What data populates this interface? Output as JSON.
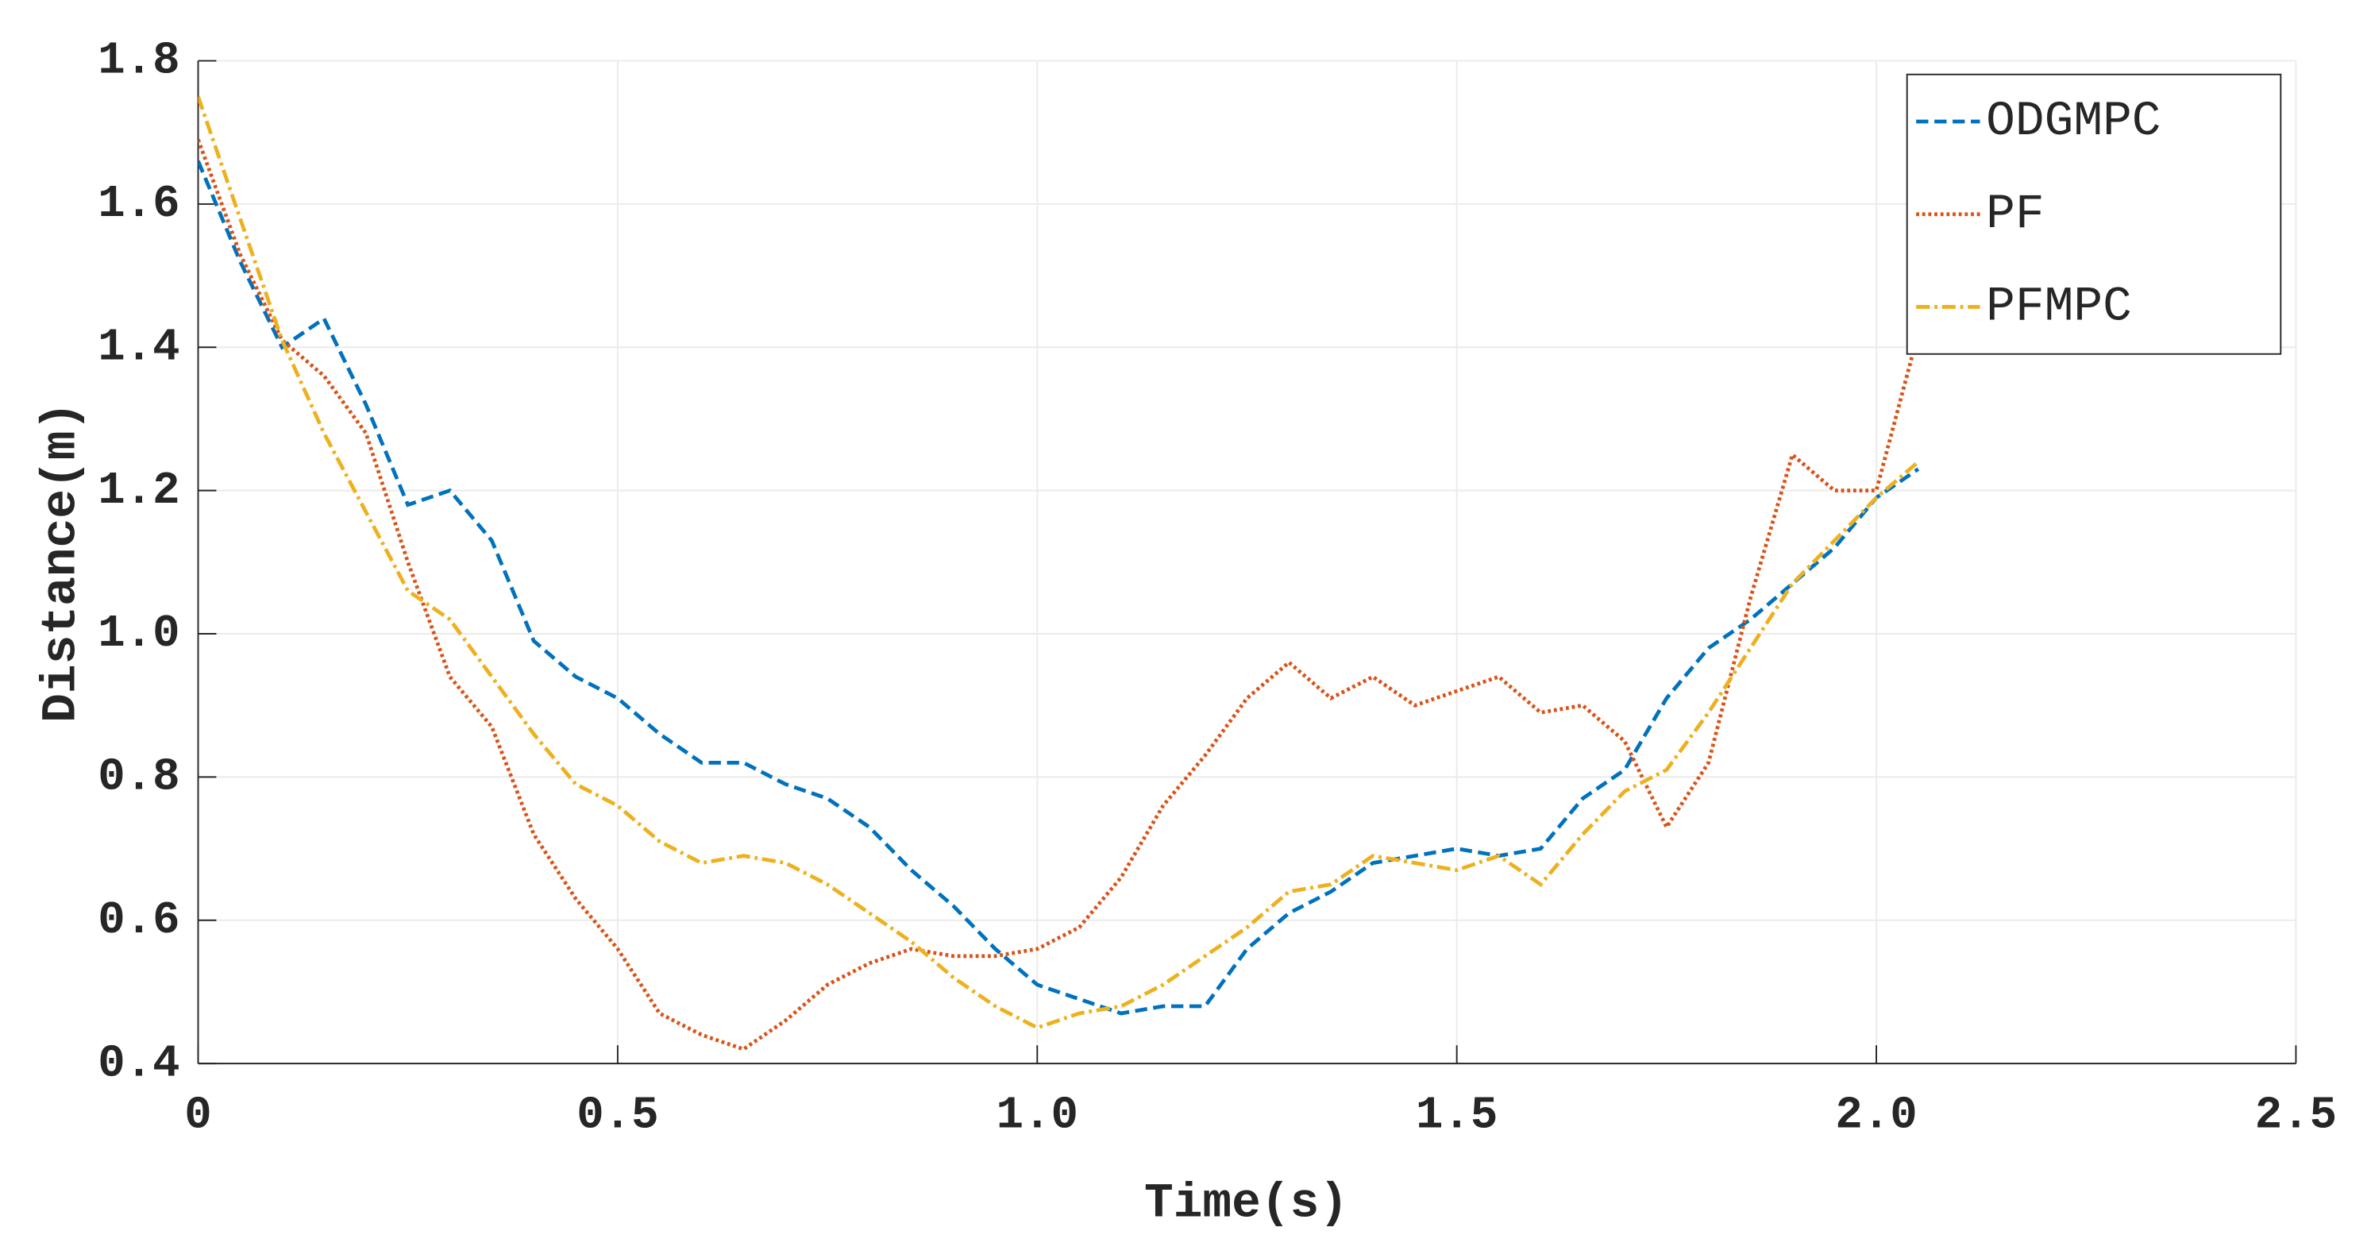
{
  "chart_data": {
    "type": "line",
    "x_label": "Time(s)",
    "y_label": "Distance(m)",
    "x": [
      0,
      0.05,
      0.1,
      0.15,
      0.2,
      0.25,
      0.3,
      0.35,
      0.4,
      0.45,
      0.5,
      0.55,
      0.6,
      0.65,
      0.7,
      0.75,
      0.8,
      0.85,
      0.9,
      0.95,
      1.0,
      1.05,
      1.1,
      1.15,
      1.2,
      1.25,
      1.3,
      1.35,
      1.4,
      1.45,
      1.5,
      1.55,
      1.6,
      1.65,
      1.7,
      1.75,
      1.8,
      1.85,
      1.9,
      1.95,
      2.0,
      2.05
    ],
    "series": [
      {
        "name": "ODGMPC",
        "color": "#0072bd",
        "dash": "dashed",
        "values": [
          1.66,
          1.52,
          1.4,
          1.44,
          1.32,
          1.18,
          1.2,
          1.13,
          0.99,
          0.94,
          0.91,
          0.86,
          0.82,
          0.82,
          0.79,
          0.77,
          0.73,
          0.67,
          0.62,
          0.56,
          0.51,
          0.49,
          0.47,
          0.48,
          0.48,
          0.56,
          0.61,
          0.64,
          0.68,
          0.69,
          0.7,
          0.69,
          0.7,
          0.77,
          0.81,
          0.91,
          0.98,
          1.02,
          1.07,
          1.12,
          1.19,
          1.23
        ]
      },
      {
        "name": "PF",
        "color": "#d95319",
        "dash": "dotted",
        "values": [
          1.69,
          1.53,
          1.41,
          1.36,
          1.28,
          1.1,
          0.94,
          0.87,
          0.72,
          0.63,
          0.56,
          0.47,
          0.44,
          0.42,
          0.46,
          0.51,
          0.54,
          0.56,
          0.55,
          0.55,
          0.56,
          0.59,
          0.66,
          0.76,
          0.83,
          0.91,
          0.96,
          0.91,
          0.94,
          0.9,
          0.92,
          0.94,
          0.89,
          0.9,
          0.85,
          0.73,
          0.82,
          1.05,
          1.25,
          1.2,
          1.2,
          1.42
        ]
      },
      {
        "name": "PFMPC",
        "color": "#edb120",
        "dash": "dashdot",
        "values": [
          1.75,
          1.58,
          1.41,
          1.28,
          1.17,
          1.06,
          1.02,
          0.94,
          0.86,
          0.79,
          0.76,
          0.71,
          0.68,
          0.69,
          0.68,
          0.65,
          0.61,
          0.57,
          0.52,
          0.48,
          0.45,
          0.47,
          0.48,
          0.51,
          0.55,
          0.59,
          0.64,
          0.65,
          0.69,
          0.68,
          0.67,
          0.69,
          0.65,
          0.72,
          0.78,
          0.81,
          0.89,
          0.98,
          1.07,
          1.13,
          1.19,
          1.24
        ]
      }
    ],
    "xlim": [
      0,
      2.5
    ],
    "xticks": [
      0,
      0.5,
      {
        "value": 1,
        "label": "1.0"
      },
      1.5,
      {
        "value": 2,
        "label": "2.0"
      },
      2.5
    ],
    "ylim": [
      0.4,
      1.8
    ],
    "yticks": [
      0.4,
      0.6,
      0.8,
      {
        "value": 1,
        "label": "1.0"
      },
      1.2,
      1.4,
      1.6,
      1.8
    ],
    "grid": true,
    "legend": "top-right"
  }
}
